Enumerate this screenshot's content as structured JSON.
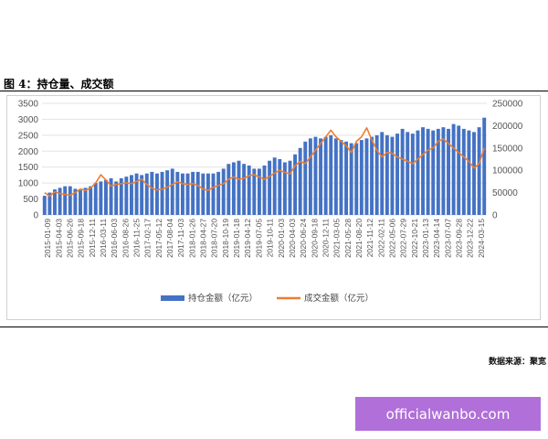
{
  "figure": {
    "title": "图 4：持仓量、成交额",
    "source": "数据来源：聚宽",
    "watermark": "officialwanbo.com"
  },
  "chart_data": {
    "type": "bar-line-combo",
    "x_tick_labels": [
      "2015-01-09",
      "2015-04-03",
      "2015-06-26",
      "2015-09-18",
      "2015-12-11",
      "2016-03-11",
      "2016-06-03",
      "2016-08-26",
      "2016-11-25",
      "2017-02-17",
      "2017-05-12",
      "2017-08-04",
      "2017-11-03",
      "2018-01-26",
      "2018-04-27",
      "2018-07-20",
      "2018-10-19",
      "2019-01-18",
      "2019-04-12",
      "2019-07-05",
      "2019-10-11",
      "2020-01-03",
      "2020-04-03",
      "2020-06-24",
      "2020-09-18",
      "2020-12-11",
      "2021-03-05",
      "2021-05-28",
      "2021-08-20",
      "2021-11-12",
      "2022-02-11",
      "2022-05-06",
      "2022-07-29",
      "2022-10-21",
      "2023-01-13",
      "2023-04-14",
      "2023-07-07",
      "2023-09-28",
      "2023-12-22",
      "2024-03-15"
    ],
    "left_axis": {
      "min": 0,
      "max": 3500,
      "ticks": [
        0,
        500,
        1000,
        1500,
        2000,
        2500,
        3000,
        3500
      ]
    },
    "right_axis": {
      "min": 0,
      "max": 250000,
      "ticks": [
        0,
        50000,
        100000,
        150000,
        200000,
        250000
      ]
    },
    "series": [
      {
        "name": "持仓金额（亿元）",
        "type": "bar",
        "axis": "left",
        "color": "#4472c4",
        "values": [
          600,
          700,
          800,
          850,
          900,
          900,
          820,
          780,
          850,
          900,
          1000,
          1050,
          1100,
          1150,
          1050,
          1150,
          1200,
          1250,
          1300,
          1250,
          1300,
          1350,
          1300,
          1350,
          1400,
          1450,
          1350,
          1300,
          1300,
          1350,
          1350,
          1300,
          1300,
          1300,
          1350,
          1450,
          1600,
          1650,
          1700,
          1600,
          1550,
          1450,
          1450,
          1550,
          1700,
          1800,
          1750,
          1650,
          1700,
          1900,
          2100,
          2300,
          2400,
          2450,
          2400,
          2450,
          2500,
          2400,
          2350,
          2300,
          2250,
          2250,
          2350,
          2400,
          2450,
          2500,
          2600,
          2500,
          2450,
          2550,
          2700,
          2600,
          2550,
          2650,
          2750,
          2700,
          2650,
          2700,
          2750,
          2700,
          2850,
          2800,
          2700,
          2650,
          2600,
          2750,
          3050
        ]
      },
      {
        "name": "成交金额（亿元）",
        "type": "line",
        "axis": "right",
        "color": "#ed7d31",
        "values": [
          50000,
          42000,
          52000,
          48000,
          46000,
          44000,
          50000,
          58000,
          55000,
          60000,
          72000,
          90000,
          78000,
          65000,
          68000,
          70000,
          72000,
          70000,
          75000,
          80000,
          68000,
          60000,
          56000,
          58000,
          62000,
          68000,
          74000,
          70000,
          68000,
          70000,
          66000,
          58000,
          55000,
          62000,
          66000,
          70000,
          80000,
          85000,
          80000,
          82000,
          88000,
          90000,
          85000,
          80000,
          86000,
          94000,
          100000,
          95000,
          92000,
          110000,
          120000,
          115000,
          130000,
          145000,
          160000,
          175000,
          190000,
          175000,
          165000,
          155000,
          140000,
          165000,
          175000,
          195000,
          168000,
          145000,
          130000,
          140000,
          138000,
          130000,
          125000,
          120000,
          115000,
          125000,
          135000,
          145000,
          150000,
          165000,
          170000,
          160000,
          150000,
          140000,
          130000,
          120000,
          105000,
          115000,
          150000
        ]
      }
    ],
    "legend_position": "bottom"
  }
}
